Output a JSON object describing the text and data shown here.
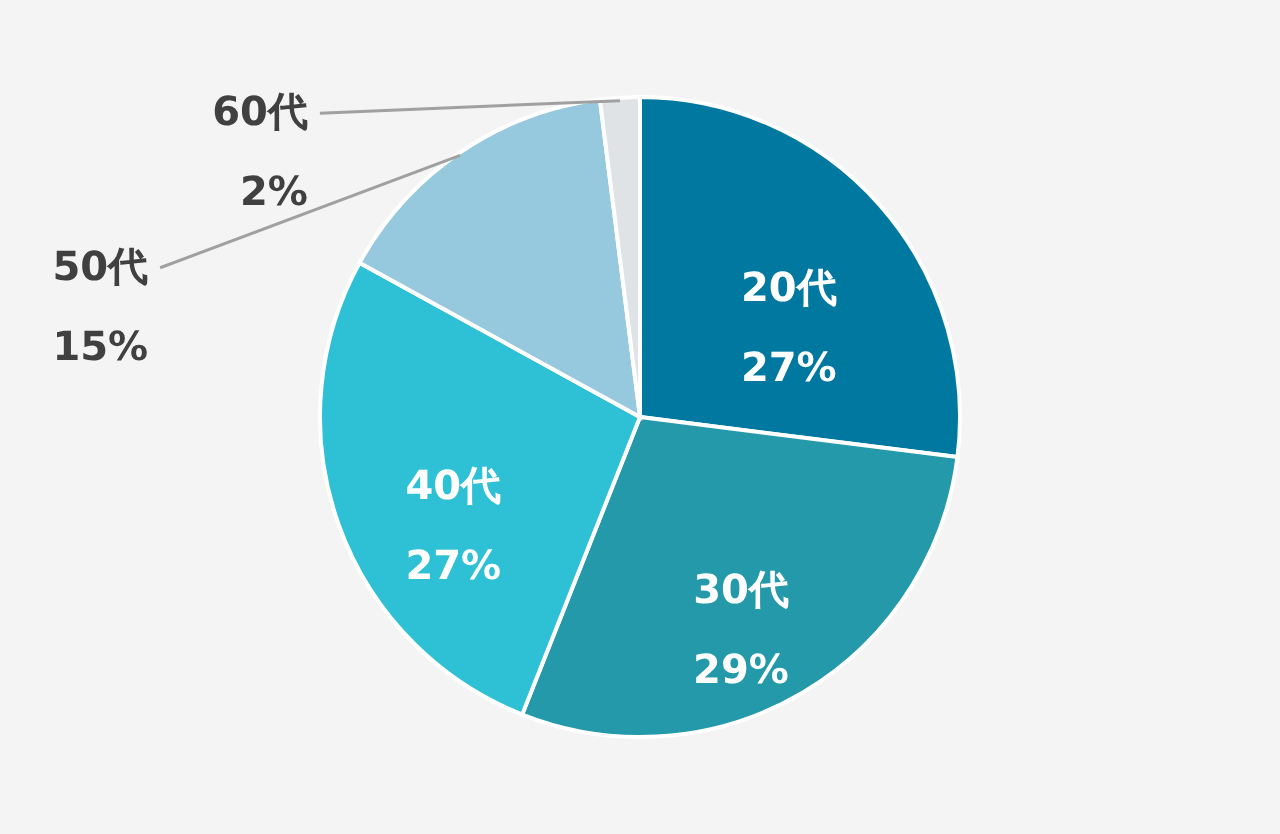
{
  "chart_data": {
    "type": "pie",
    "categories": [
      "20代",
      "30代",
      "40代",
      "50代",
      "60代"
    ],
    "values": [
      27,
      29,
      27,
      15,
      2
    ],
    "value_labels": [
      "27%",
      "29%",
      "27%",
      "15%",
      "2%"
    ],
    "colors": [
      "#00789f",
      "#2399a9",
      "#2ec0d5",
      "#96c9dd",
      "#dfe3e6"
    ]
  }
}
